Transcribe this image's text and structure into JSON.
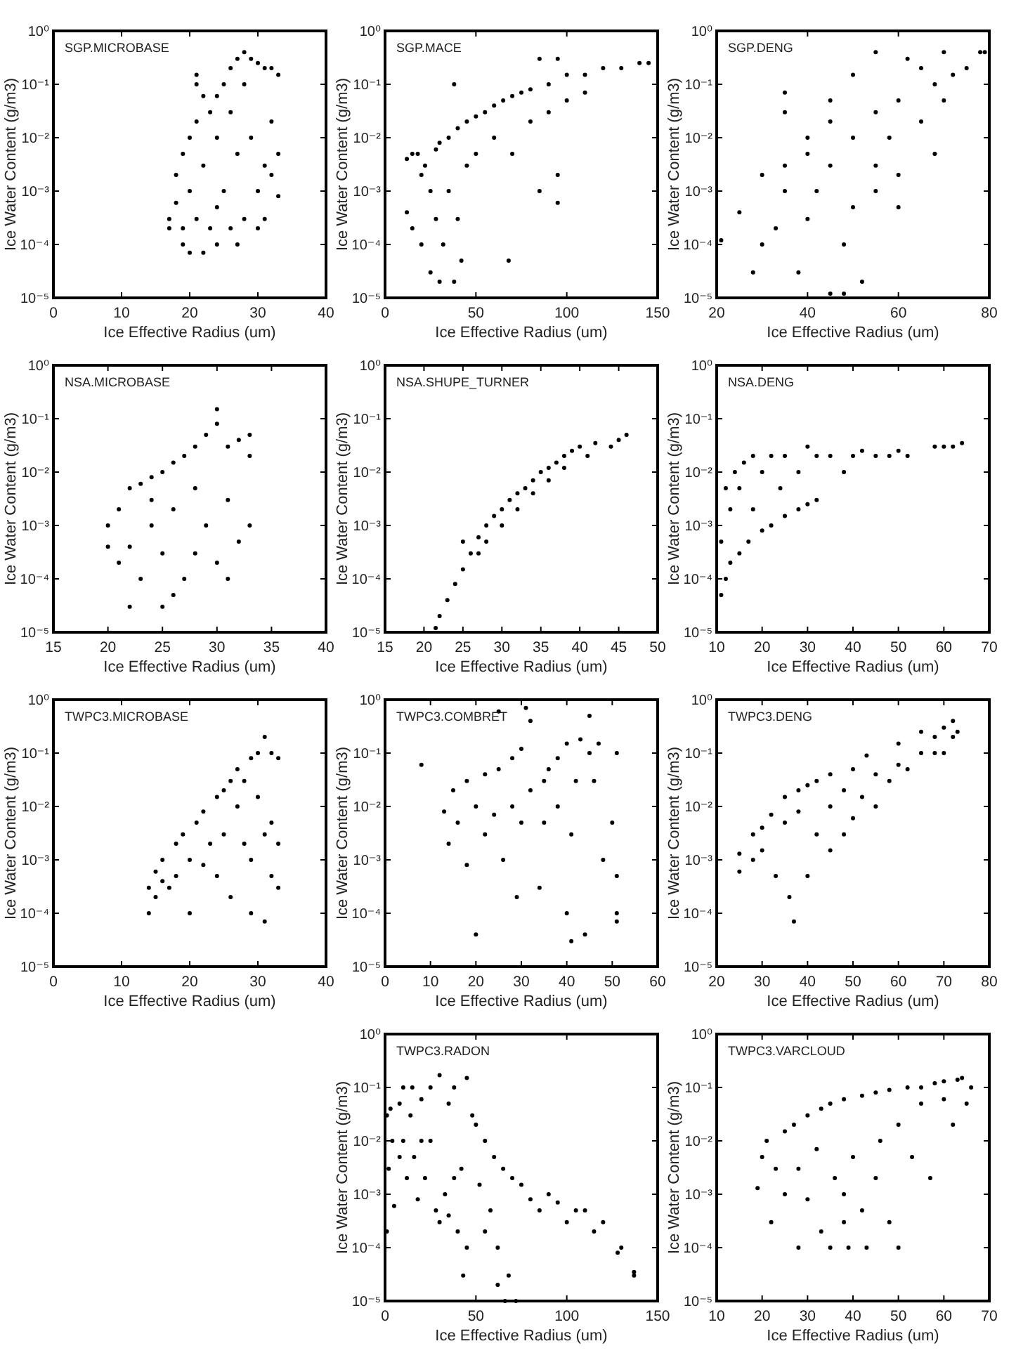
{
  "chart_data": [
    {
      "type": "scatter",
      "title": "SGP.MICROBASE",
      "xlabel": "Ice Effective Radius (um)",
      "ylabel": "Ice Water Content (g/m3)",
      "xlim": [
        0,
        40
      ],
      "xticks": [
        0,
        10,
        20,
        30,
        40
      ],
      "ylim": [
        1e-05,
        1
      ],
      "yticks": [
        {
          "value": 1e-05,
          "label": "10⁻⁵"
        },
        {
          "value": 0.0001,
          "label": "10⁻⁴"
        },
        {
          "value": 0.001,
          "label": "10⁻³"
        },
        {
          "value": 0.01,
          "label": "10⁻²"
        },
        {
          "value": 0.1,
          "label": "10⁻¹"
        },
        {
          "value": 1,
          "label": "10⁰"
        }
      ],
      "log": "y",
      "marker": "circle",
      "series": [
        {
          "color": "#000000",
          "x": [
            17,
            17,
            18,
            18,
            19,
            19,
            19,
            20,
            20,
            20,
            21,
            21,
            21,
            21,
            22,
            22,
            22,
            23,
            23,
            24,
            24,
            24,
            25,
            25,
            26,
            26,
            26,
            27,
            27,
            28,
            28,
            28,
            29,
            29,
            30,
            30,
            30,
            31,
            31,
            31,
            32,
            32,
            32,
            33,
            33,
            33,
            27,
            24
          ],
          "values": [
            0.0003,
            0.0002,
            0.0006,
            0.002,
            0.0002,
            0.005,
            0.0001,
            7e-05,
            0.01,
            0.001,
            0.1,
            0.15,
            0.02,
            0.0003,
            0.06,
            7e-05,
            0.003,
            0.03,
            0.0002,
            0.06,
            0.01,
            0.0001,
            0.1,
            0.001,
            0.2,
            0.03,
            0.0002,
            0.3,
            0.005,
            0.4,
            0.1,
            0.0003,
            0.3,
            0.01,
            0.25,
            0.001,
            0.0002,
            0.2,
            0.003,
            0.0003,
            0.2,
            0.02,
            0.002,
            0.15,
            0.005,
            0.0008,
            0.0001,
            0.0005
          ]
        }
      ]
    },
    {
      "type": "scatter",
      "title": "SGP.MACE",
      "xlabel": "Ice Effective Radius (um)",
      "ylabel": "Ice Water Content (g/m3)",
      "xlim": [
        0,
        150
      ],
      "xticks": [
        0,
        50,
        100,
        150
      ],
      "ylim": [
        1e-05,
        1
      ],
      "yticks": [
        {
          "value": 1e-05,
          "label": "10⁻⁵"
        },
        {
          "value": 0.0001,
          "label": "10⁻⁴"
        },
        {
          "value": 0.001,
          "label": "10⁻³"
        },
        {
          "value": 0.01,
          "label": "10⁻²"
        },
        {
          "value": 0.1,
          "label": "10⁻¹"
        },
        {
          "value": 1,
          "label": "10⁰"
        }
      ],
      "log": "y",
      "marker": "circle",
      "series": [
        {
          "color": "#000000",
          "x": [
            12,
            12,
            15,
            15,
            18,
            20,
            20,
            22,
            25,
            25,
            28,
            28,
            30,
            30,
            32,
            35,
            35,
            38,
            38,
            40,
            40,
            42,
            45,
            45,
            50,
            50,
            55,
            60,
            60,
            65,
            68,
            70,
            70,
            75,
            80,
            80,
            85,
            85,
            90,
            90,
            95,
            95,
            95,
            100,
            100,
            110,
            110,
            120,
            130,
            140,
            145
          ],
          "values": [
            0.004,
            0.0004,
            0.005,
            0.0002,
            0.005,
            0.002,
            0.0001,
            0.003,
            0.001,
            3e-05,
            0.0003,
            0.006,
            2e-05,
            0.008,
            0.0001,
            0.01,
            0.001,
            0.1,
            2e-05,
            0.015,
            0.0003,
            5e-05,
            0.02,
            0.003,
            0.025,
            0.005,
            0.03,
            0.04,
            0.01,
            0.05,
            5e-05,
            0.06,
            0.005,
            0.07,
            0.08,
            0.02,
            0.3,
            0.001,
            0.1,
            0.03,
            0.3,
            0.0006,
            0.002,
            0.15,
            0.05,
            0.15,
            0.07,
            0.2,
            0.2,
            0.25,
            0.25
          ]
        }
      ]
    },
    {
      "type": "scatter",
      "title": "SGP.DENG",
      "xlabel": "Ice Effective Radius (um)",
      "ylabel": "Ice Water Content (g/m3)",
      "xlim": [
        20,
        80
      ],
      "xticks": [
        20,
        40,
        60,
        80
      ],
      "ylim": [
        1e-05,
        1
      ],
      "yticks": [
        {
          "value": 1e-05,
          "label": "10⁻⁵"
        },
        {
          "value": 0.0001,
          "label": "10⁻⁴"
        },
        {
          "value": 0.001,
          "label": "10⁻³"
        },
        {
          "value": 0.01,
          "label": "10⁻²"
        },
        {
          "value": 0.1,
          "label": "10⁻¹"
        },
        {
          "value": 1,
          "label": "10⁰"
        }
      ],
      "log": "y",
      "marker": "circle",
      "series": [
        {
          "color": "#000000",
          "x": [
            21,
            25,
            30,
            35,
            35,
            35,
            40,
            45,
            50,
            55,
            28,
            30,
            33,
            35,
            38,
            40,
            42,
            45,
            45,
            48,
            50,
            50,
            55,
            55,
            55,
            58,
            60,
            60,
            62,
            65,
            65,
            68,
            70,
            70,
            72,
            75,
            78,
            79,
            45,
            40,
            52,
            48,
            60,
            68
          ],
          "values": [
            0.00012,
            0.0004,
            0.002,
            0.003,
            0.07,
            0.03,
            0.01,
            0.05,
            0.15,
            0.4,
            3e-05,
            0.0001,
            0.0002,
            0.001,
            3e-05,
            0.0003,
            0.001,
            0.003,
            1.2e-05,
            0.0001,
            0.0005,
            0.01,
            0.001,
            0.003,
            0.03,
            0.01,
            0.002,
            0.05,
            0.3,
            0.02,
            0.2,
            0.1,
            0.05,
            0.4,
            0.15,
            0.2,
            0.4,
            0.4,
            0.02,
            0.005,
            2e-05,
            1.2e-05,
            0.0005,
            0.005
          ]
        }
      ]
    },
    {
      "type": "scatter",
      "title": "NSA.MICROBASE",
      "xlabel": "Ice Effective Radius (um)",
      "ylabel": "Ice Water Content (g/m3)",
      "xlim": [
        15,
        40
      ],
      "xticks": [
        15,
        20,
        25,
        30,
        35,
        40
      ],
      "ylim": [
        1e-05,
        1
      ],
      "yticks": [
        {
          "value": 1e-05,
          "label": "10⁻⁵"
        },
        {
          "value": 0.0001,
          "label": "10⁻⁴"
        },
        {
          "value": 0.001,
          "label": "10⁻³"
        },
        {
          "value": 0.01,
          "label": "10⁻²"
        },
        {
          "value": 0.1,
          "label": "10⁻¹"
        },
        {
          "value": 1,
          "label": "10⁰"
        }
      ],
      "log": "y",
      "marker": "circle",
      "series": [
        {
          "color": "#000000",
          "x": [
            20,
            20,
            21,
            21,
            22,
            22,
            22,
            23,
            23,
            24,
            24,
            25,
            25,
            25,
            26,
            26,
            27,
            27,
            28,
            28,
            28,
            29,
            29,
            30,
            30,
            30,
            31,
            31,
            31,
            32,
            32,
            33,
            33,
            33,
            26,
            24
          ],
          "values": [
            0.0004,
            0.001,
            0.0002,
            0.002,
            0.005,
            3e-05,
            0.0004,
            0.006,
            0.0001,
            0.008,
            0.001,
            0.01,
            0.0003,
            3e-05,
            0.015,
            0.002,
            0.02,
            0.0001,
            0.03,
            0.005,
            0.0003,
            0.05,
            0.001,
            0.15,
            0.08,
            0.0002,
            0.03,
            0.003,
            0.0001,
            0.04,
            0.0005,
            0.05,
            0.02,
            0.001,
            5e-05,
            0.003
          ]
        }
      ]
    },
    {
      "type": "scatter",
      "title": "NSA.SHUPE_TURNER",
      "xlabel": "Ice Effective Radius (um)",
      "ylabel": "Ice Water Content (g/m3)",
      "xlim": [
        15,
        50
      ],
      "xticks": [
        15,
        20,
        25,
        30,
        35,
        40,
        45,
        50
      ],
      "ylim": [
        1e-05,
        1
      ],
      "yticks": [
        {
          "value": 1e-05,
          "label": "10⁻⁵"
        },
        {
          "value": 0.0001,
          "label": "10⁻⁴"
        },
        {
          "value": 0.001,
          "label": "10⁻³"
        },
        {
          "value": 0.01,
          "label": "10⁻²"
        },
        {
          "value": 0.1,
          "label": "10⁻¹"
        },
        {
          "value": 1,
          "label": "10⁰"
        }
      ],
      "log": "y",
      "marker": "circle",
      "series": [
        {
          "color": "#000000",
          "x": [
            21.5,
            22,
            23,
            24,
            25,
            25,
            26,
            27,
            27,
            28,
            28,
            29,
            30,
            30,
            31,
            32,
            32,
            33,
            34,
            34,
            35,
            36,
            36,
            37,
            38,
            38,
            39,
            40,
            41,
            42,
            44,
            45,
            46
          ],
          "values": [
            1.2e-05,
            2e-05,
            4e-05,
            8e-05,
            0.00015,
            0.0005,
            0.0003,
            0.0006,
            0.0003,
            0.001,
            0.0005,
            0.0015,
            0.002,
            0.001,
            0.003,
            0.004,
            0.002,
            0.005,
            0.007,
            0.004,
            0.01,
            0.012,
            0.007,
            0.015,
            0.02,
            0.012,
            0.025,
            0.03,
            0.02,
            0.035,
            0.03,
            0.04,
            0.05
          ]
        }
      ]
    },
    {
      "type": "scatter",
      "title": "NSA.DENG",
      "xlabel": "Ice Effective Radius (um)",
      "ylabel": "Ice Water Content (g/m3)",
      "xlim": [
        10,
        70
      ],
      "xticks": [
        10,
        20,
        30,
        40,
        50,
        60,
        70
      ],
      "ylim": [
        1e-05,
        1
      ],
      "yticks": [
        {
          "value": 1e-05,
          "label": "10⁻⁵"
        },
        {
          "value": 0.0001,
          "label": "10⁻⁴"
        },
        {
          "value": 0.001,
          "label": "10⁻³"
        },
        {
          "value": 0.01,
          "label": "10⁻²"
        },
        {
          "value": 0.1,
          "label": "10⁻¹"
        },
        {
          "value": 1,
          "label": "10⁰"
        }
      ],
      "log": "y",
      "marker": "circle",
      "series": [
        {
          "color": "#000000",
          "x": [
            11,
            11,
            12,
            12,
            13,
            13,
            14,
            15,
            15,
            16,
            17,
            18,
            18,
            20,
            20,
            22,
            22,
            24,
            25,
            25,
            28,
            28,
            30,
            30,
            32,
            32,
            35,
            38,
            40,
            42,
            45,
            48,
            50,
            52,
            58,
            60,
            62,
            64
          ],
          "values": [
            5e-05,
            0.0005,
            0.0001,
            0.005,
            0.002,
            0.0002,
            0.01,
            0.0003,
            0.005,
            0.015,
            0.0005,
            0.02,
            0.002,
            0.0008,
            0.01,
            0.02,
            0.001,
            0.005,
            0.0015,
            0.02,
            0.002,
            0.01,
            0.03,
            0.0025,
            0.003,
            0.02,
            0.02,
            0.01,
            0.02,
            0.025,
            0.02,
            0.02,
            0.025,
            0.02,
            0.03,
            0.03,
            0.03,
            0.035
          ]
        }
      ]
    },
    {
      "type": "scatter",
      "title": "TWPC3.MICROBASE",
      "xlabel": "Ice Effective Radius (um)",
      "ylabel": "Ice Water Content (g/m3)",
      "xlim": [
        0,
        40
      ],
      "xticks": [
        0,
        10,
        20,
        30,
        40
      ],
      "ylim": [
        1e-05,
        1
      ],
      "yticks": [
        {
          "value": 1e-05,
          "label": "10⁻⁵"
        },
        {
          "value": 0.0001,
          "label": "10⁻⁴"
        },
        {
          "value": 0.001,
          "label": "10⁻³"
        },
        {
          "value": 0.01,
          "label": "10⁻²"
        },
        {
          "value": 0.1,
          "label": "10⁻¹"
        },
        {
          "value": 1,
          "label": "10⁰"
        }
      ],
      "log": "y",
      "marker": "circle",
      "series": [
        {
          "color": "#000000",
          "x": [
            14,
            14,
            15,
            15,
            16,
            16,
            17,
            18,
            18,
            19,
            20,
            20,
            21,
            22,
            22,
            23,
            24,
            24,
            25,
            25,
            26,
            26,
            27,
            27,
            28,
            28,
            29,
            29,
            29,
            30,
            30,
            31,
            31,
            31,
            32,
            32,
            32,
            33,
            33,
            33
          ],
          "values": [
            0.0001,
            0.0003,
            0.0006,
            0.0002,
            0.001,
            0.0004,
            0.0003,
            0.002,
            0.0005,
            0.003,
            0.0001,
            0.001,
            0.005,
            0.0008,
            0.008,
            0.002,
            0.015,
            0.0005,
            0.003,
            0.02,
            0.03,
            0.0002,
            0.01,
            0.05,
            0.03,
            0.002,
            0.08,
            0.001,
            0.0001,
            0.1,
            0.015,
            0.2,
            0.003,
            7e-05,
            0.1,
            0.005,
            0.0005,
            0.08,
            0.0003,
            0.002
          ]
        }
      ]
    },
    {
      "type": "scatter",
      "title": "TWPC3.COMBRET",
      "xlabel": "Ice Effective Radius (um)",
      "ylabel": "Ice Water Content (g/m3)",
      "xlim": [
        0,
        60
      ],
      "xticks": [
        0,
        10,
        20,
        30,
        40,
        50,
        60
      ],
      "ylim": [
        1e-05,
        1
      ],
      "yticks": [
        {
          "value": 1e-05,
          "label": "10⁻⁵"
        },
        {
          "value": 0.0001,
          "label": "10⁻⁴"
        },
        {
          "value": 0.001,
          "label": "10⁻³"
        },
        {
          "value": 0.01,
          "label": "10⁻²"
        },
        {
          "value": 0.1,
          "label": "10⁻¹"
        },
        {
          "value": 1,
          "label": "10⁰"
        }
      ],
      "log": "y",
      "marker": "circle",
      "series": [
        {
          "color": "#000000",
          "x": [
            8,
            13,
            14,
            15,
            16,
            18,
            18,
            20,
            20,
            22,
            22,
            24,
            25,
            25,
            26,
            28,
            28,
            29,
            30,
            30,
            31,
            32,
            32,
            34,
            35,
            35,
            36,
            38,
            38,
            40,
            40,
            41,
            41,
            42,
            43,
            44,
            45,
            45,
            46,
            47,
            48,
            50,
            51,
            51,
            51,
            51
          ],
          "values": [
            0.06,
            0.008,
            0.002,
            0.02,
            0.005,
            0.03,
            0.0008,
            4e-05,
            0.01,
            0.04,
            0.003,
            0.007,
            0.05,
            0.6,
            0.001,
            0.08,
            0.01,
            0.0002,
            0.12,
            0.005,
            0.7,
            0.4,
            0.02,
            0.0003,
            0.03,
            0.005,
            0.05,
            0.01,
            0.08,
            0.15,
            0.0001,
            3e-05,
            0.003,
            0.03,
            0.18,
            4e-05,
            0.1,
            0.5,
            0.03,
            0.15,
            0.001,
            0.005,
            0.1,
            0.0001,
            7e-05,
            0.0005
          ]
        }
      ]
    },
    {
      "type": "scatter",
      "title": "TWPC3.DENG",
      "xlabel": "Ice Effective Radius (um)",
      "ylabel": "Ice Water Content (g/m3)",
      "xlim": [
        20,
        80
      ],
      "xticks": [
        20,
        30,
        40,
        50,
        60,
        70,
        80
      ],
      "ylim": [
        1e-05,
        1
      ],
      "yticks": [
        {
          "value": 1e-05,
          "label": "10⁻⁵"
        },
        {
          "value": 0.0001,
          "label": "10⁻⁴"
        },
        {
          "value": 0.001,
          "label": "10⁻³"
        },
        {
          "value": 0.01,
          "label": "10⁻²"
        },
        {
          "value": 0.1,
          "label": "10⁻¹"
        },
        {
          "value": 1,
          "label": "10⁰"
        }
      ],
      "log": "y",
      "marker": "circle",
      "series": [
        {
          "color": "#000000",
          "x": [
            25,
            25,
            28,
            28,
            30,
            30,
            32,
            33,
            35,
            35,
            36,
            37,
            38,
            38,
            40,
            40,
            42,
            42,
            45,
            45,
            45,
            48,
            48,
            50,
            50,
            52,
            53,
            55,
            55,
            58,
            60,
            60,
            62,
            65,
            65,
            68,
            68,
            70,
            70,
            72,
            72,
            73
          ],
          "values": [
            0.0013,
            0.0006,
            0.003,
            0.001,
            0.004,
            0.0015,
            0.007,
            0.0005,
            0.015,
            0.005,
            0.0002,
            7e-05,
            0.02,
            0.008,
            0.0005,
            0.025,
            0.003,
            0.03,
            0.04,
            0.0015,
            0.01,
            0.003,
            0.02,
            0.05,
            0.006,
            0.015,
            0.09,
            0.04,
            0.01,
            0.03,
            0.15,
            0.06,
            0.05,
            0.1,
            0.25,
            0.2,
            0.1,
            0.3,
            0.1,
            0.4,
            0.2,
            0.25
          ]
        }
      ]
    },
    {
      "type": "scatter",
      "title": "TWPC3.RADON",
      "xlabel": "Ice Effective Radius (um)",
      "ylabel": "Ice Water Content (g/m3)",
      "xlim": [
        0,
        150
      ],
      "xticks": [
        0,
        50,
        100,
        150
      ],
      "ylim": [
        1e-05,
        1
      ],
      "yticks": [
        {
          "value": 1e-05,
          "label": "10⁻⁵"
        },
        {
          "value": 0.0001,
          "label": "10⁻⁴"
        },
        {
          "value": 0.001,
          "label": "10⁻³"
        },
        {
          "value": 0.01,
          "label": "10⁻²"
        },
        {
          "value": 0.1,
          "label": "10⁻¹"
        },
        {
          "value": 1,
          "label": "10⁰"
        }
      ],
      "log": "y",
      "marker": "circle",
      "series": [
        {
          "color": "#000000",
          "x": [
            1,
            1,
            2,
            3,
            4,
            5,
            8,
            8,
            10,
            10,
            12,
            14,
            15,
            16,
            18,
            20,
            20,
            22,
            25,
            25,
            28,
            30,
            30,
            33,
            35,
            35,
            38,
            38,
            40,
            42,
            43,
            45,
            45,
            48,
            50,
            52,
            55,
            55,
            58,
            60,
            62,
            62,
            65,
            66,
            68,
            70,
            72,
            75,
            80,
            85,
            90,
            95,
            100,
            105,
            110,
            115,
            120,
            128,
            130,
            137,
            137
          ],
          "values": [
            0.03,
            0.0002,
            0.003,
            0.04,
            0.01,
            0.0006,
            0.05,
            0.005,
            0.1,
            0.01,
            0.002,
            0.03,
            0.1,
            0.005,
            0.0008,
            0.06,
            0.01,
            0.002,
            0.1,
            0.01,
            0.0005,
            0.17,
            0.0003,
            0.001,
            0.05,
            0.0004,
            0.1,
            0.002,
            0.0002,
            0.003,
            3e-05,
            0.15,
            0.0001,
            0.03,
            0.02,
            0.0015,
            0.01,
            0.0002,
            0.0005,
            0.005,
            2e-05,
            0.0001,
            0.003,
            1e-05,
            3e-05,
            0.002,
            1e-05,
            0.0015,
            0.0008,
            0.0005,
            0.001,
            0.0007,
            0.0003,
            0.0005,
            0.0005,
            0.0002,
            0.0003,
            8e-05,
            0.0001,
            3e-05,
            3.5e-05
          ]
        }
      ]
    },
    {
      "type": "scatter",
      "title": "TWPC3.VARCLOUD",
      "xlabel": "Ice Effective Radius (um)",
      "ylabel": "Ice Water Content (g/m3)",
      "xlim": [
        10,
        70
      ],
      "xticks": [
        10,
        20,
        30,
        40,
        50,
        60,
        70
      ],
      "ylim": [
        1e-05,
        1
      ],
      "yticks": [
        {
          "value": 1e-05,
          "label": "10⁻⁵"
        },
        {
          "value": 0.0001,
          "label": "10⁻⁴"
        },
        {
          "value": 0.001,
          "label": "10⁻³"
        },
        {
          "value": 0.01,
          "label": "10⁻²"
        },
        {
          "value": 0.1,
          "label": "10⁻¹"
        },
        {
          "value": 1,
          "label": "10⁰"
        }
      ],
      "log": "y",
      "marker": "circle",
      "series": [
        {
          "color": "#000000",
          "x": [
            19,
            20,
            21,
            22,
            23,
            25,
            25,
            27,
            28,
            28,
            30,
            30,
            32,
            33,
            33,
            35,
            35,
            36,
            38,
            38,
            38,
            39,
            40,
            42,
            42,
            43,
            45,
            45,
            46,
            48,
            48,
            50,
            50,
            52,
            53,
            55,
            55,
            57,
            58,
            60,
            60,
            62,
            63,
            64,
            65,
            66
          ],
          "values": [
            0.0013,
            0.005,
            0.01,
            0.0003,
            0.003,
            0.015,
            0.001,
            0.02,
            0.0001,
            0.003,
            0.03,
            0.0008,
            0.007,
            0.04,
            0.0002,
            0.05,
            0.0001,
            0.002,
            0.06,
            0.0003,
            0.001,
            0.0001,
            0.005,
            0.07,
            0.0005,
            0.0001,
            0.08,
            0.002,
            0.01,
            0.09,
            0.0003,
            0.0001,
            0.02,
            0.1,
            0.005,
            0.1,
            0.05,
            0.002,
            0.12,
            0.13,
            0.06,
            0.02,
            0.14,
            0.15,
            0.05,
            0.1
          ]
        }
      ]
    }
  ]
}
